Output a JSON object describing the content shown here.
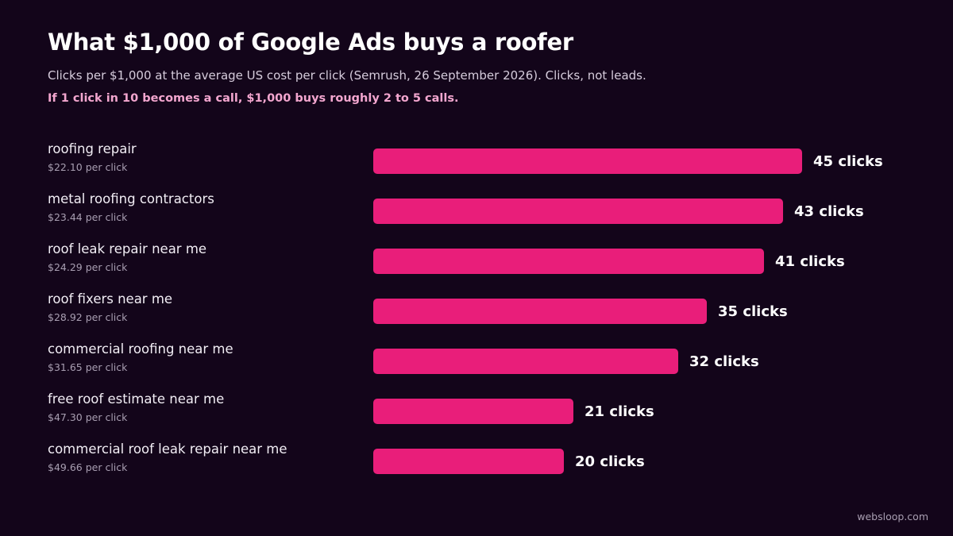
{
  "title": "What $1,000 of Google Ads buys a roofer",
  "subtitle": "Clicks per $1,000 at the average US cost per click (Semrush, 26 September 2026). Clicks, not leads.",
  "note": "If 1 click in 10 becomes a call, $1,000 buys roughly 2 to 5 calls.",
  "footer": "websloop.com",
  "colors": {
    "bar": "#e91e7a",
    "background": "#13051a",
    "note": "#f3a6cf"
  },
  "chart_data": {
    "type": "bar",
    "orientation": "horizontal",
    "title": "What $1,000 of Google Ads buys a roofer",
    "xlim": [
      0,
      45
    ],
    "categories": [
      "roofing repair",
      "metal roofing contractors",
      "roof leak repair near me",
      "roof fixers near me",
      "commercial roofing near me",
      "free roof estimate near me",
      "commercial roof leak repair near me"
    ],
    "cpc_labels": [
      "$22.10 per click",
      "$23.44 per click",
      "$24.29 per click",
      "$28.92 per click",
      "$31.65 per click",
      "$47.30 per click",
      "$49.66 per click"
    ],
    "values": [
      45,
      43,
      41,
      35,
      32,
      21,
      20
    ],
    "value_labels": [
      "45 clicks",
      "43 clicks",
      "41 clicks",
      "35 clicks",
      "32 clicks",
      "21 clicks",
      "20 clicks"
    ]
  }
}
